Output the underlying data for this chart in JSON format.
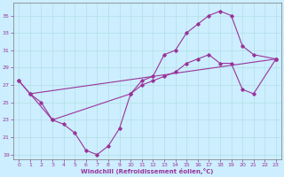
{
  "xlabel": "Windchill (Refroidissement éolien,°C)",
  "bg_color": "#cceeff",
  "line_color": "#993399",
  "xlim": [
    -0.5,
    23.5
  ],
  "ylim": [
    18.5,
    36.5
  ],
  "yticks": [
    19,
    21,
    23,
    25,
    27,
    29,
    31,
    33,
    35
  ],
  "xticks": [
    0,
    1,
    2,
    3,
    4,
    5,
    6,
    7,
    8,
    9,
    10,
    11,
    12,
    13,
    14,
    15,
    16,
    17,
    18,
    19,
    20,
    21,
    22,
    23
  ],
  "curve1_x": [
    0,
    1,
    2,
    3,
    10,
    11,
    12,
    13,
    14,
    15,
    16,
    17,
    18,
    19,
    20,
    21,
    23
  ],
  "curve1_y": [
    27.5,
    26.0,
    25.0,
    23.0,
    26.0,
    27.5,
    28.0,
    30.5,
    31.0,
    33.0,
    34.0,
    35.0,
    35.5,
    35.0,
    31.5,
    30.5,
    30.0
  ],
  "curve2_x": [
    0,
    3,
    4,
    5,
    6,
    7,
    8,
    9,
    10,
    11,
    12,
    13,
    14,
    15,
    16,
    17,
    18,
    19,
    20,
    21,
    23
  ],
  "curve2_y": [
    27.5,
    23.0,
    22.5,
    21.5,
    19.5,
    19.0,
    20.0,
    22.0,
    26.0,
    27.0,
    27.5,
    28.0,
    28.5,
    29.5,
    30.0,
    30.5,
    29.5,
    29.5,
    26.5,
    26.0,
    30.0
  ],
  "curve3_x": [
    1,
    23
  ],
  "curve3_y": [
    26.0,
    30.0
  ]
}
